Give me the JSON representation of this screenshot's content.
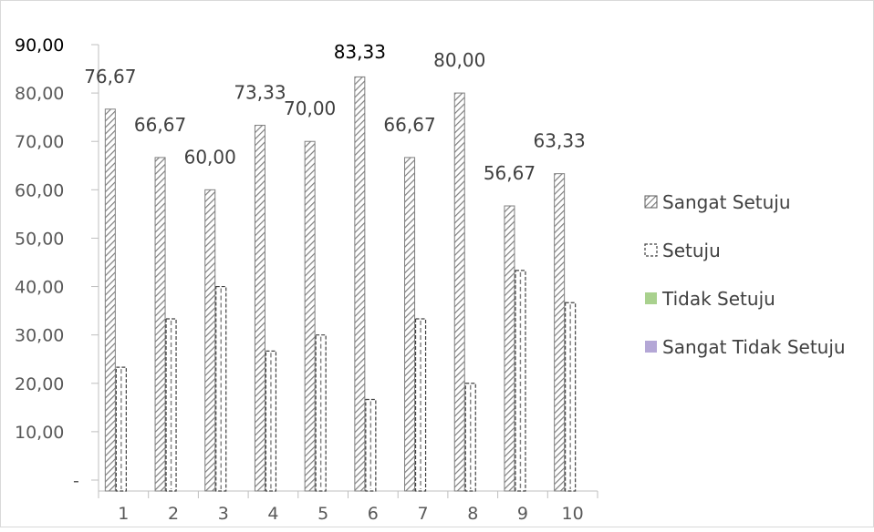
{
  "chart_data": {
    "type": "bar",
    "categories": [
      "1",
      "2",
      "3",
      "4",
      "5",
      "6",
      "7",
      "8",
      "9",
      "10"
    ],
    "series": [
      {
        "name": "Sangat Setuju",
        "values": [
          76.67,
          66.67,
          60.0,
          73.33,
          70.0,
          83.33,
          66.67,
          80.0,
          56.67,
          63.33
        ],
        "data_labels": [
          "76,67",
          "66,67",
          "60,00",
          "73,33",
          "70,00",
          "83,33",
          "66,67",
          "80,00",
          "56,67",
          "63,33"
        ],
        "pattern": "diagonal-hatch"
      },
      {
        "name": "Setuju",
        "values": [
          23.33,
          33.33,
          40.0,
          26.67,
          30.0,
          16.67,
          33.33,
          20.0,
          43.33,
          36.67
        ],
        "pattern": "dashed-box"
      },
      {
        "name": "Tidak Setuju",
        "values": [
          0,
          0,
          0,
          0,
          0,
          0,
          0,
          0,
          0,
          0
        ],
        "color": "#a9d18e"
      },
      {
        "name": "Sangat Tidak Setuju",
        "values": [
          0,
          0,
          0,
          0,
          0,
          0,
          0,
          0,
          0,
          0
        ],
        "color": "#b4a7d6"
      }
    ],
    "y_ticks": [
      "-",
      "10,00",
      "20,00",
      "30,00",
      "40,00",
      "50,00",
      "60,00",
      "70,00",
      "80,00",
      "90,00"
    ],
    "ylim": [
      0,
      90
    ],
    "grid": false,
    "legend": "right"
  }
}
